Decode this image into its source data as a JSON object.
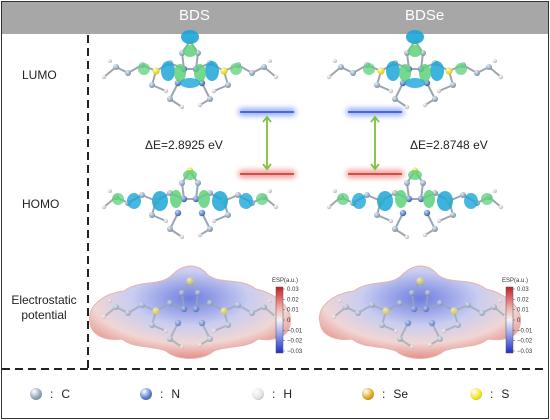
{
  "columns": {
    "left": "BDS",
    "right": "BDSe"
  },
  "rows": {
    "lumo": "LUMO",
    "homo": "HOMO",
    "esp_line1": "Electrostatic",
    "esp_line2": "potential"
  },
  "gaps": {
    "bds": "ΔE=2.8925 eV",
    "bdse": "ΔE=2.8748 eV"
  },
  "esp_scale": {
    "title": "ESP(a.u.)",
    "ticks": [
      "0.03",
      "0.02",
      "0.01",
      "0",
      "−0.01",
      "−0.02",
      "−0.03"
    ]
  },
  "legend": [
    {
      "symbol": "C",
      "color": "#8a9fb6"
    },
    {
      "symbol": "N",
      "color": "#4f78c8"
    },
    {
      "symbol": "H",
      "color": "#e2e2e2"
    },
    {
      "symbol": "Se",
      "color": "#e0a117"
    },
    {
      "symbol": "S",
      "color": "#f2e21e"
    }
  ],
  "colors": {
    "lumo_level": "#4a6df2",
    "homo_level": "#e2504a",
    "transition_arrow": "#7cc13d",
    "orbital_cyan": "#1ba6d8",
    "orbital_green": "#5ed17a"
  }
}
